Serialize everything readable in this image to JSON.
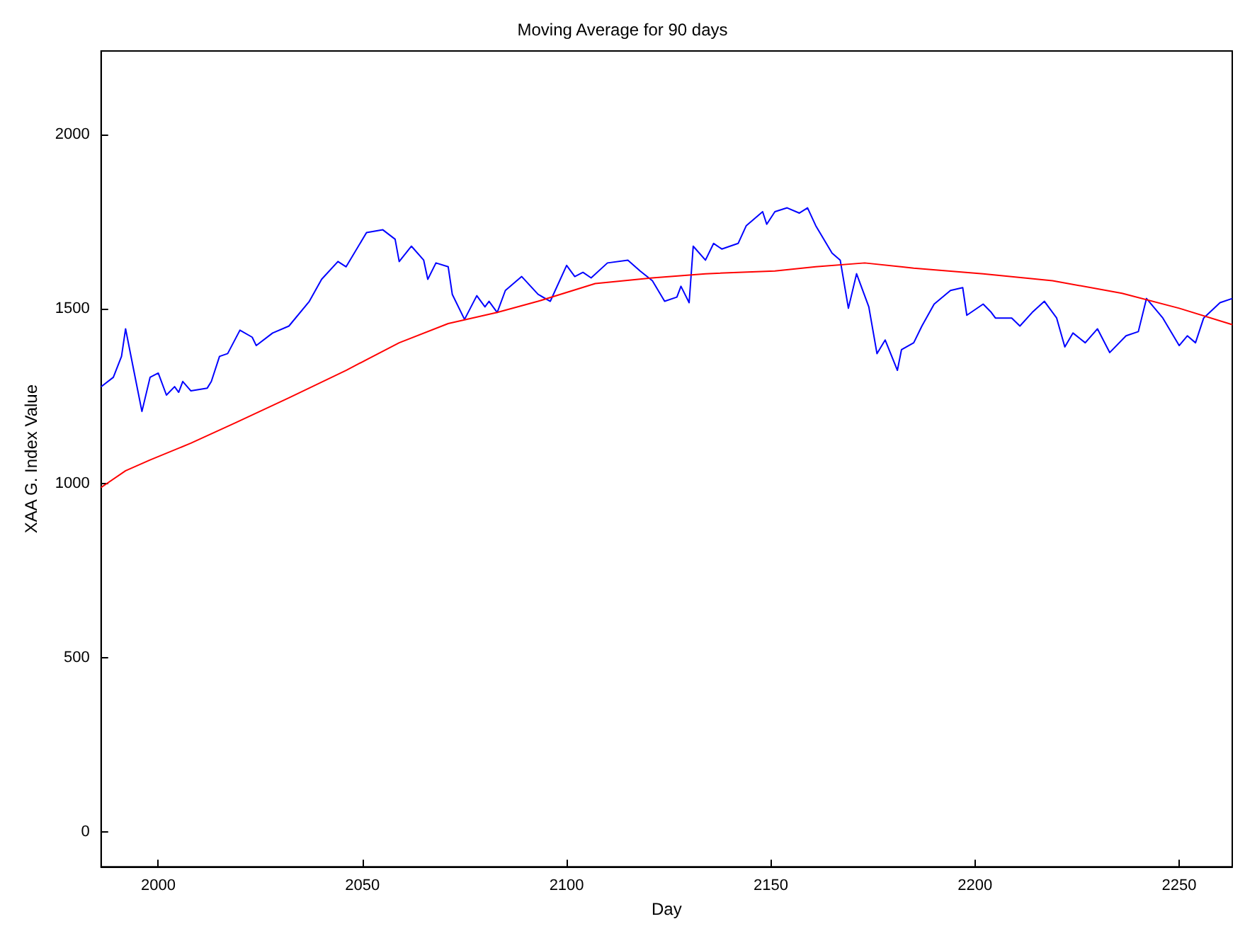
{
  "chart_data": {
    "type": "line",
    "title": "Moving Average for 90 days",
    "xlabel": "Day",
    "ylabel": "XAA G. Index Value",
    "xlim": [
      1986,
      2263
    ],
    "ylim": [
      -100,
      2240
    ],
    "xticks": [
      2000,
      2050,
      2100,
      2150,
      2200,
      2250
    ],
    "yticks": [
      0,
      500,
      1000,
      1500,
      2000
    ],
    "grid": false,
    "marker": "none",
    "line_style": "solid",
    "series": [
      {
        "color": "#0000ff",
        "x": [
          1986,
          1989,
          1991,
          1992,
          1994,
          1996,
          1998,
          2000,
          2002,
          2004,
          2005,
          2006,
          2008,
          2012,
          2013,
          2015,
          2017,
          2020,
          2023,
          2024,
          2028,
          2032,
          2037,
          2040,
          2044,
          2046,
          2051,
          2055,
          2058,
          2059,
          2062,
          2065,
          2066,
          2068,
          2071,
          2072,
          2075,
          2078,
          2080,
          2081,
          2083,
          2085,
          2089,
          2093,
          2096,
          2100,
          2102,
          2104,
          2106,
          2110,
          2115,
          2118,
          2121,
          2124,
          2127,
          2128,
          2130,
          2131,
          2134,
          2136,
          2138,
          2142,
          2144,
          2148,
          2149,
          2151,
          2154,
          2157,
          2159,
          2161,
          2165,
          2167,
          2169,
          2171,
          2174,
          2176,
          2178,
          2181,
          2182,
          2185,
          2187,
          2190,
          2194,
          2197,
          2198,
          2202,
          2204,
          2205,
          2209,
          2211,
          2214,
          2217,
          2220,
          2222,
          2224,
          2227,
          2230,
          2233,
          2237,
          2240,
          2242,
          2246,
          2250,
          2252,
          2254,
          2256,
          2260,
          2263
        ],
        "values": [
          1277,
          1304,
          1364,
          1443,
          1324,
          1206,
          1304,
          1316,
          1253,
          1277,
          1261,
          1292,
          1265,
          1273,
          1292,
          1364,
          1372,
          1439,
          1419,
          1395,
          1431,
          1451,
          1522,
          1585,
          1636,
          1621,
          1719,
          1727,
          1700,
          1636,
          1680,
          1640,
          1585,
          1632,
          1621,
          1542,
          1470,
          1538,
          1506,
          1522,
          1490,
          1553,
          1593,
          1542,
          1522,
          1625,
          1593,
          1605,
          1589,
          1632,
          1640,
          1609,
          1581,
          1522,
          1534,
          1565,
          1518,
          1680,
          1640,
          1688,
          1672,
          1688,
          1739,
          1779,
          1743,
          1779,
          1790,
          1775,
          1790,
          1739,
          1660,
          1640,
          1502,
          1601,
          1506,
          1372,
          1411,
          1324,
          1383,
          1403,
          1451,
          1514,
          1553,
          1561,
          1482,
          1514,
          1490,
          1474,
          1474,
          1451,
          1490,
          1522,
          1474,
          1391,
          1431,
          1403,
          1443,
          1375,
          1423,
          1435,
          1530,
          1474,
          1395,
          1423,
          1403,
          1474,
          1518,
          1530
        ]
      },
      {
        "color": "#ff0000",
        "x": [
          1986,
          1992,
          1998,
          2008,
          2019,
          2032,
          2046,
          2059,
          2071,
          2083,
          2093,
          2107,
          2121,
          2134,
          2151,
          2161,
          2173,
          2185,
          2202,
          2219,
          2236,
          2250,
          2263
        ],
        "values": [
          988,
          1036,
          1067,
          1115,
          1174,
          1245,
          1324,
          1403,
          1458,
          1490,
          1522,
          1573,
          1589,
          1601,
          1609,
          1621,
          1632,
          1617,
          1601,
          1581,
          1545,
          1502,
          1455
        ]
      }
    ]
  }
}
